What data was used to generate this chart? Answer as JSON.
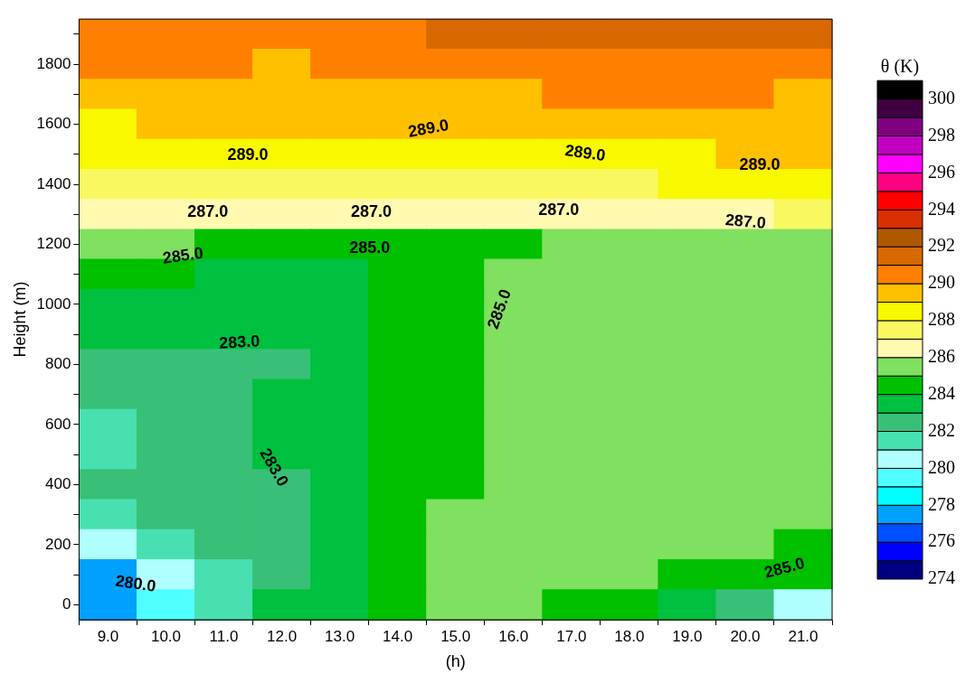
{
  "chart_data": {
    "type": "heatmap",
    "xlabel": "(h)",
    "ylabel": "Height (m)",
    "clabel": "θ (K)",
    "categories": [
      "9.0",
      "10.0",
      "11.0",
      "12.0",
      "13.0",
      "14.0",
      "15.0",
      "16.0",
      "17.0",
      "18.0",
      "19.0",
      "20.0",
      "21.0"
    ],
    "y_categories": [
      null,
      "1800",
      null,
      "1600",
      null,
      "1400",
      null,
      "1200",
      null,
      "1000",
      null,
      "800",
      null,
      "600",
      null,
      "400",
      null,
      "200",
      null,
      "0"
    ],
    "clim": [
      274,
      301
    ],
    "cticks": [
      274,
      276,
      278,
      280,
      282,
      284,
      286,
      288,
      290,
      292,
      294,
      296,
      298,
      300
    ],
    "colors": [
      "#000080",
      "#0000ff",
      "#0050ff",
      "#00a0ff",
      "#00ffff",
      "#50ffff",
      "#b0ffff",
      "#48e0b0",
      "#38c078",
      "#00c040",
      "#00c000",
      "#80e060",
      "#fffab0",
      "#faf860",
      "#f8f800",
      "#ffc000",
      "#ff8000",
      "#d86800",
      "#b05800",
      "#d83000",
      "#ff0000",
      "#ff0080",
      "#ff00ff",
      "#c000c0",
      "#800080",
      "#400040",
      "#000000"
    ],
    "cells": [
      [
        290.5,
        290.5,
        290.5,
        290.5,
        290.5,
        290.5,
        291.5,
        291.5,
        291.5,
        291.5,
        291.5,
        291.5,
        291.5
      ],
      [
        290.5,
        290.5,
        290.5,
        289.5,
        290.5,
        290.5,
        290.5,
        290.5,
        290.5,
        290.5,
        290.5,
        290.5,
        290.5
      ],
      [
        289.5,
        289.5,
        289.5,
        289.5,
        289.5,
        289.5,
        289.5,
        289.5,
        290.5,
        290.5,
        290.5,
        290.5,
        289.5
      ],
      [
        288.5,
        289.5,
        289.5,
        289.5,
        289.5,
        289.5,
        289.5,
        289.5,
        289.5,
        289.5,
        289.5,
        289.5,
        289.5
      ],
      [
        288.5,
        288.5,
        288.5,
        288.5,
        288.5,
        288.5,
        288.5,
        288.5,
        288.5,
        288.5,
        288.5,
        289.5,
        289.5
      ],
      [
        287.5,
        287.5,
        287.5,
        287.5,
        287.5,
        287.5,
        287.5,
        287.5,
        287.5,
        287.5,
        288.5,
        288.5,
        288.5
      ],
      [
        286.5,
        286.5,
        286.5,
        286.5,
        286.5,
        286.5,
        286.5,
        286.5,
        286.5,
        286.5,
        286.5,
        286.5,
        287.5
      ],
      [
        285.5,
        285.5,
        284.5,
        284.5,
        284.5,
        284.5,
        284.5,
        284.5,
        285.5,
        285.5,
        285.5,
        285.5,
        285.5
      ],
      [
        284.5,
        284.5,
        283.5,
        283.5,
        283.5,
        284.5,
        284.5,
        285.5,
        285.5,
        285.5,
        285.5,
        285.5,
        285.5
      ],
      [
        283.5,
        283.5,
        283.5,
        283.5,
        283.5,
        284.5,
        284.5,
        285.5,
        285.5,
        285.5,
        285.5,
        285.5,
        285.5
      ],
      [
        283.5,
        283.5,
        283.5,
        283.5,
        283.5,
        284.5,
        284.5,
        285.5,
        285.5,
        285.5,
        285.5,
        285.5,
        285.5
      ],
      [
        282.5,
        282.5,
        282.5,
        282.5,
        283.5,
        284.5,
        284.5,
        285.5,
        285.5,
        285.5,
        285.5,
        285.5,
        285.5
      ],
      [
        282.5,
        282.5,
        282.5,
        283.5,
        283.5,
        284.5,
        284.5,
        285.5,
        285.5,
        285.5,
        285.5,
        285.5,
        285.5
      ],
      [
        281.5,
        282.5,
        282.5,
        283.5,
        283.5,
        284.5,
        284.5,
        285.5,
        285.5,
        285.5,
        285.5,
        285.5,
        285.5
      ],
      [
        281.5,
        282.5,
        282.5,
        283.5,
        283.5,
        284.5,
        284.5,
        285.5,
        285.5,
        285.5,
        285.5,
        285.5,
        285.5
      ],
      [
        282.5,
        282.5,
        282.5,
        282.5,
        283.5,
        284.5,
        284.5,
        285.5,
        285.5,
        285.5,
        285.5,
        285.5,
        285.5
      ],
      [
        281.5,
        282.5,
        282.5,
        282.5,
        283.5,
        284.5,
        285.5,
        285.5,
        285.5,
        285.5,
        285.5,
        285.5,
        285.5
      ],
      [
        280.5,
        281.5,
        282.5,
        282.5,
        283.5,
        284.5,
        285.5,
        285.5,
        285.5,
        285.5,
        285.5,
        285.5,
        284.5
      ],
      [
        277.5,
        280.5,
        281.5,
        282.5,
        283.5,
        284.5,
        285.5,
        285.5,
        285.5,
        285.5,
        284.5,
        284.5,
        284.5
      ],
      [
        277.5,
        279.5,
        281.5,
        283.5,
        283.5,
        284.5,
        285.5,
        285.5,
        284.5,
        284.5,
        283.5,
        282.5,
        280.5
      ]
    ],
    "annotations": [
      "289.0",
      "289.0",
      "289.0",
      "289.0",
      "287.0",
      "287.0",
      "287.0",
      "287.0",
      "285.0",
      "285.0",
      "285.0",
      "285.0",
      "283.0",
      "283.0",
      "280.0"
    ]
  }
}
